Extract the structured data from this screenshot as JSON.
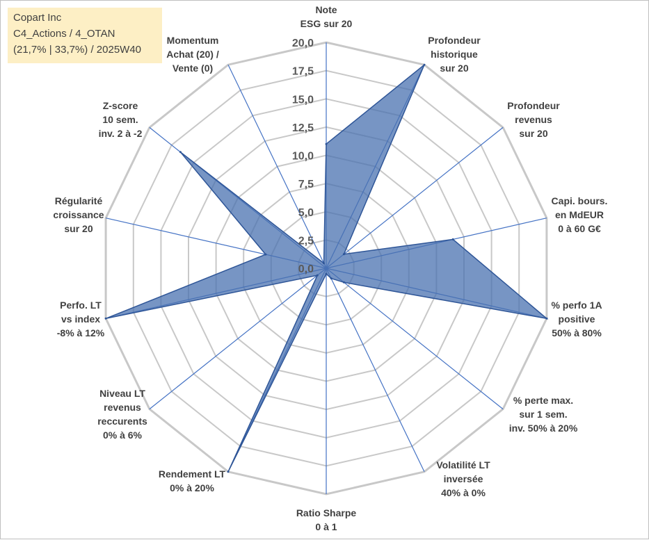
{
  "info_box": {
    "line1": "Copart Inc",
    "line2": "C4_Actions / 4_OTAN",
    "line3": "(21,7% | 33,7%) / 2025W40"
  },
  "colors": {
    "fill": "#4a72b0",
    "fill_opacity": 0.75,
    "outline": "#2e5597",
    "spoke": "#4472c4",
    "grid": "#c8c8c8",
    "info_bg": "#fdefc5"
  },
  "chart_data": {
    "type": "radar",
    "title": "",
    "rmin": 0,
    "rmax": 20,
    "tick_step": 2.5,
    "tick_labels": [
      "0,0",
      "2,5",
      "5,0",
      "7,5",
      "10,0",
      "12,5",
      "15,0",
      "17,5",
      "20,0"
    ],
    "grid": true,
    "axes": [
      {
        "label": [
          "Note",
          "ESG sur 20"
        ],
        "value": 11.0
      },
      {
        "label": [
          "Profondeur",
          "historique",
          "sur 20"
        ],
        "value": 20.0
      },
      {
        "label": [
          "Profondeur",
          "revenus",
          "sur 20"
        ],
        "value": 2.0
      },
      {
        "label": [
          "Capi. bours.",
          "en MdEUR",
          "0 à 60 G€"
        ],
        "value": 11.5
      },
      {
        "label": [
          "% perfo 1A",
          "positive",
          "50% à 80%"
        ],
        "value": 20.0
      },
      {
        "label": [
          "% perte max.",
          "sur 1 sem.",
          "inv. 50% à 20%"
        ],
        "value": 2.0
      },
      {
        "label": [
          "Volatilité LT",
          "inversée",
          "40% à 0%"
        ],
        "value": 1.0
      },
      {
        "label": [
          "Ratio Sharpe",
          "0 à 1"
        ],
        "value": 0.5
      },
      {
        "label": [
          "Rendement LT",
          "0% à 20%"
        ],
        "value": 20.0
      },
      {
        "label": [
          "Niveau LT",
          "revenus",
          "reccurents",
          "0% à 6%"
        ],
        "value": 1.0
      },
      {
        "label": [
          "Perfo. LT",
          "vs index",
          "-8% à 12%"
        ],
        "value": 20.0
      },
      {
        "label": [
          "Régularité",
          "croissance",
          "sur 20"
        ],
        "value": 5.5
      },
      {
        "label": [
          "Z-score",
          "10 sem.",
          "inv. 2 à -2"
        ],
        "value": 16.5
      },
      {
        "label": [
          "Momentum",
          "Achat (20) /",
          "Vente (0)"
        ],
        "value": 0.5
      }
    ]
  }
}
